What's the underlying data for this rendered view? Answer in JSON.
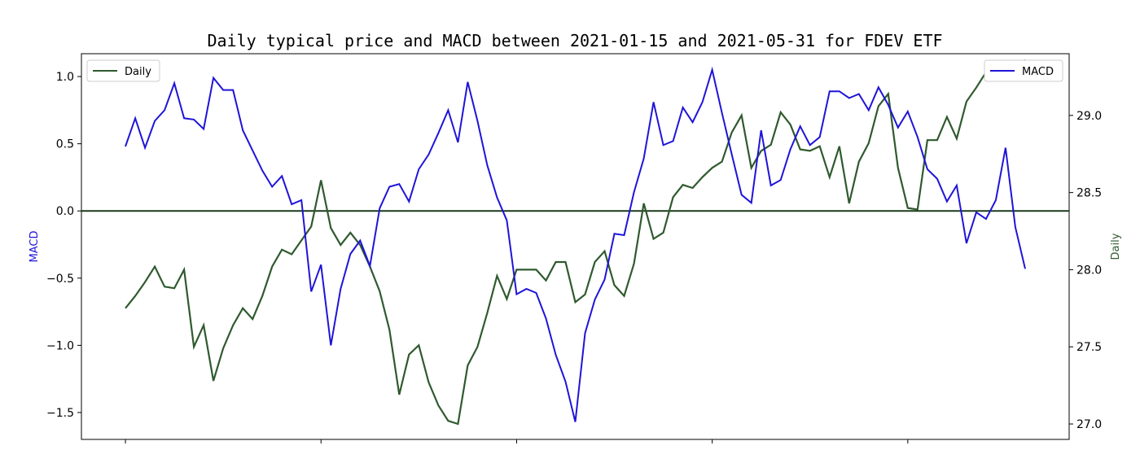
{
  "chart_data": {
    "type": "line",
    "title": "Daily typical price and MACD between 2021-01-15 and 2021-05-31 for FDEV ETF",
    "ylabel_left": "MACD",
    "ylabel_right": "Daily",
    "ylim_left": [
      -1.7,
      1.17
    ],
    "ylim_right": [
      26.9,
      29.4
    ],
    "yticks_left": [
      1.0,
      0.5,
      0.0,
      -0.5,
      -1.0,
      -1.5
    ],
    "yticks_left_labels": [
      "1.0",
      "0.5",
      "0.0",
      "−0.5",
      "−1.0",
      "−1.5"
    ],
    "yticks_right": [
      29.0,
      28.5,
      28.0,
      27.5,
      27.0
    ],
    "yticks_right_labels": [
      "29.0",
      "28.5",
      "28.0",
      "27.5",
      "27.0"
    ],
    "xlim": [
      -4.5,
      96.5
    ],
    "xticks": [
      0,
      20,
      40,
      60,
      80
    ],
    "zero_line": 0.0,
    "legend_left": {
      "label": "Daily",
      "position": "upper left"
    },
    "legend_right": {
      "label": "MACD",
      "position": "upper right"
    },
    "colors": {
      "macd": "#1f14d8",
      "daily": "#2f5a2f",
      "zero_line": "#1a3a1a"
    },
    "series": [
      {
        "name": "MACD",
        "axis": "left",
        "values": [
          0.48,
          0.69,
          0.47,
          0.67,
          0.75,
          0.95,
          0.69,
          0.68,
          0.61,
          0.99,
          0.9,
          0.9,
          0.6,
          0.45,
          0.3,
          0.18,
          0.26,
          0.05,
          0.08,
          -0.6,
          -0.4,
          -1.0,
          -0.58,
          -0.32,
          -0.22,
          -0.41,
          0.02,
          0.18,
          0.2,
          0.07,
          0.31,
          0.42,
          0.58,
          0.75,
          0.51,
          0.96,
          0.67,
          0.34,
          0.1,
          -0.07,
          -0.62,
          -0.58,
          -0.61,
          -0.8,
          -1.07,
          -1.27,
          -1.57,
          -0.91,
          -0.66,
          -0.51,
          -0.17,
          -0.18,
          0.14,
          0.39,
          0.81,
          0.49,
          0.52,
          0.77,
          0.66,
          0.81,
          1.05,
          0.73,
          0.42,
          0.12,
          0.06,
          0.6,
          0.19,
          0.23,
          0.46,
          0.63,
          0.49,
          0.55,
          0.89,
          0.89,
          0.84,
          0.87,
          0.75,
          0.92,
          0.79,
          0.62,
          0.74,
          0.55,
          0.31,
          0.24,
          0.07,
          0.19,
          -0.24,
          -0.01,
          -0.06,
          0.08,
          0.47,
          -0.12,
          -0.43
        ]
      },
      {
        "name": "Daily",
        "axis": "right",
        "values": [
          27.75,
          27.83,
          27.92,
          28.02,
          27.89,
          27.88,
          28.0,
          27.5,
          27.64,
          27.28,
          27.49,
          27.64,
          27.75,
          27.68,
          27.83,
          28.02,
          28.13,
          28.1,
          28.19,
          28.28,
          28.58,
          28.27,
          28.16,
          28.24,
          28.16,
          28.02,
          27.86,
          27.61,
          27.19,
          27.45,
          27.51,
          27.27,
          27.12,
          27.02,
          27.0,
          27.38,
          27.5,
          27.72,
          27.96,
          27.81,
          28.0,
          28.0,
          28.0,
          27.93,
          28.05,
          28.05,
          27.79,
          27.84,
          28.05,
          28.12,
          27.9,
          27.83,
          28.04,
          28.43,
          28.2,
          28.24,
          28.47,
          28.55,
          28.53,
          28.6,
          28.66,
          28.7,
          28.89,
          29.0,
          28.66,
          28.77,
          28.81,
          29.02,
          28.94,
          28.78,
          28.77,
          28.8,
          28.6,
          28.8,
          28.43,
          28.7,
          28.82,
          29.06,
          29.14,
          28.66,
          28.4,
          28.39,
          28.84,
          28.84,
          28.99,
          28.85,
          29.09,
          29.18,
          29.28,
          29.35,
          29.32,
          29.28,
          29.36
        ]
      }
    ]
  }
}
